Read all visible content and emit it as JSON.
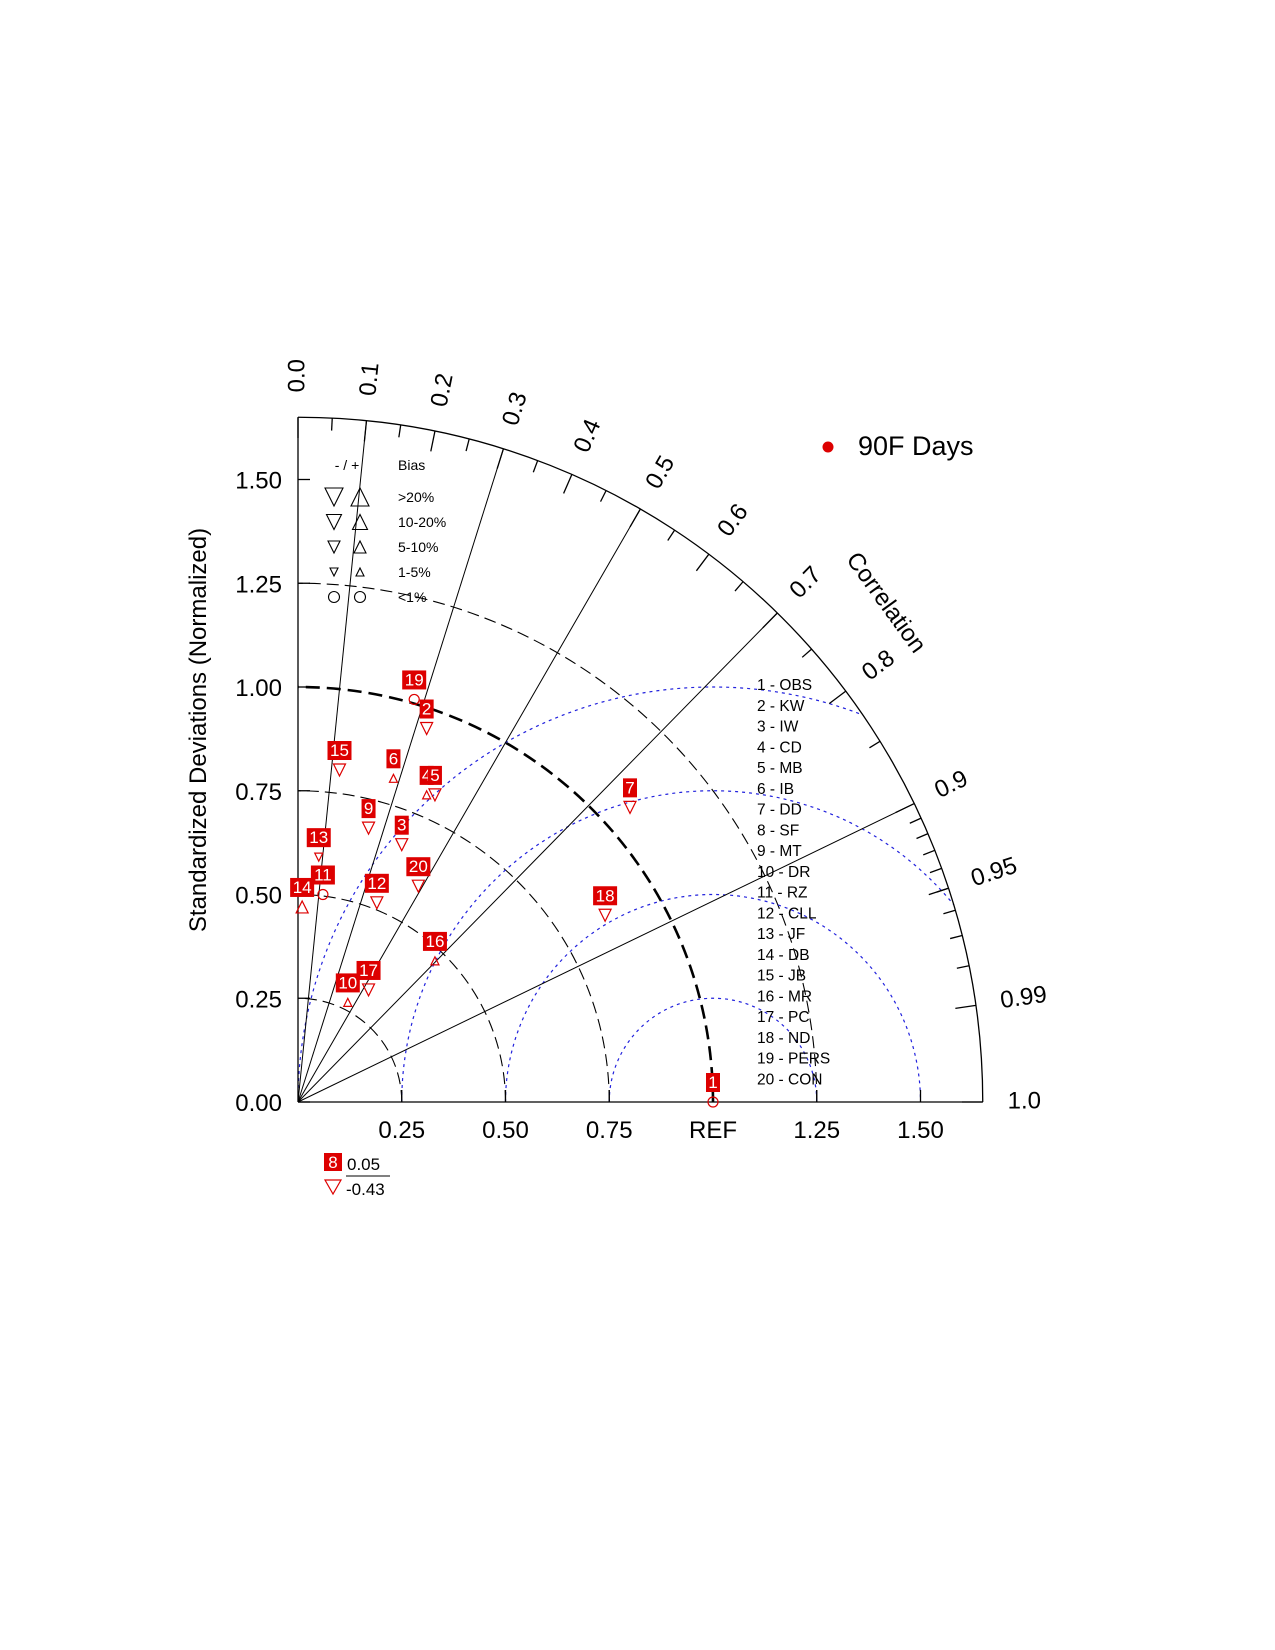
{
  "chart_data": {
    "type": "scatter",
    "subtype": "taylor-diagram",
    "title": "",
    "ylabel": "Standardized Deviations (Normalized)",
    "angular_axis_label": "Correlation",
    "x_tick_labels": [
      "0.25",
      "0.50",
      "0.75",
      "REF",
      "1.25",
      "1.50"
    ],
    "y_tick_labels": [
      "0.00",
      "0.25",
      "0.50",
      "0.75",
      "1.00",
      "1.25",
      "1.50"
    ],
    "correlation_tick_labels": [
      "0.0",
      "0.1",
      "0.2",
      "0.3",
      "0.4",
      "0.5",
      "0.6",
      "0.7",
      "0.8",
      "0.9",
      "0.95",
      "0.99",
      "1.0"
    ],
    "correlation_ticks": [
      0.0,
      0.1,
      0.2,
      0.3,
      0.4,
      0.5,
      0.6,
      0.7,
      0.8,
      0.9,
      0.95,
      0.99,
      1.0
    ],
    "std_range": [
      0,
      1.65
    ],
    "std_arcs": [
      0.25,
      0.5,
      0.75,
      1.25
    ],
    "ref_arc": 1.0,
    "rms_arcs": [
      0.25,
      0.5,
      0.75,
      1.0
    ],
    "series": [
      {
        "name": "90F Days",
        "color": "#dd0000"
      }
    ],
    "legend_position": "top-right",
    "bias_legend": {
      "header_sign": "- / +",
      "header_title": "Bias",
      "rows": [
        {
          "label": ">20%",
          "size": "xl"
        },
        {
          "label": "10-20%",
          "size": "l"
        },
        {
          "label": "5-10%",
          "size": "m"
        },
        {
          "label": "1-5%",
          "size": "s"
        },
        {
          "label": "<1%",
          "size": "circle"
        }
      ]
    },
    "cases": [
      "1 - OBS",
      "2 - KW",
      "3 - IW",
      "4 - CD",
      "5 - MB",
      "6 - IB",
      "7 - DD",
      "8 - SF",
      "9 - MT",
      "10 - DR",
      "11 - RZ",
      "12 - CLL",
      "13 - JF",
      "14 - DB",
      "15 - JB",
      "16 - MR",
      "17 - PC",
      "18 - ND",
      "19 - PERS",
      "20 - CON"
    ],
    "points": [
      {
        "id": "1",
        "x": 1.0,
        "y": 0.0,
        "bias": "circle"
      },
      {
        "id": "2",
        "x": 0.31,
        "y": 0.9,
        "bias": "down-m"
      },
      {
        "id": "3",
        "x": 0.25,
        "y": 0.62,
        "bias": "down-m"
      },
      {
        "id": "4",
        "x": 0.31,
        "y": 0.74,
        "bias": "up-s"
      },
      {
        "id": "5",
        "x": 0.33,
        "y": 0.74,
        "bias": "down-m"
      },
      {
        "id": "6",
        "x": 0.23,
        "y": 0.78,
        "bias": "up-s"
      },
      {
        "id": "7",
        "x": 0.8,
        "y": 0.71,
        "bias": "down-m"
      },
      {
        "id": "9",
        "x": 0.17,
        "y": 0.66,
        "bias": "down-m"
      },
      {
        "id": "10",
        "x": 0.12,
        "y": 0.24,
        "bias": "up-s"
      },
      {
        "id": "11",
        "x": 0.06,
        "y": 0.5,
        "bias": "circle"
      },
      {
        "id": "12",
        "x": 0.19,
        "y": 0.48,
        "bias": "down-m"
      },
      {
        "id": "13",
        "x": 0.05,
        "y": 0.59,
        "bias": "down-s"
      },
      {
        "id": "14",
        "x": 0.01,
        "y": 0.47,
        "bias": "up-m"
      },
      {
        "id": "15",
        "x": 0.1,
        "y": 0.8,
        "bias": "down-m"
      },
      {
        "id": "16",
        "x": 0.33,
        "y": 0.34,
        "bias": "up-s"
      },
      {
        "id": "17",
        "x": 0.17,
        "y": 0.27,
        "bias": "down-m"
      },
      {
        "id": "18",
        "x": 0.74,
        "y": 0.45,
        "bias": "down-m"
      },
      {
        "id": "19",
        "x": 0.28,
        "y": 0.97,
        "bias": "circle"
      },
      {
        "id": "20",
        "x": 0.29,
        "y": 0.52,
        "bias": "down-m"
      }
    ],
    "example_marker": {
      "case": "8",
      "value_top": "0.05",
      "value_bottom": "-0.43"
    }
  }
}
